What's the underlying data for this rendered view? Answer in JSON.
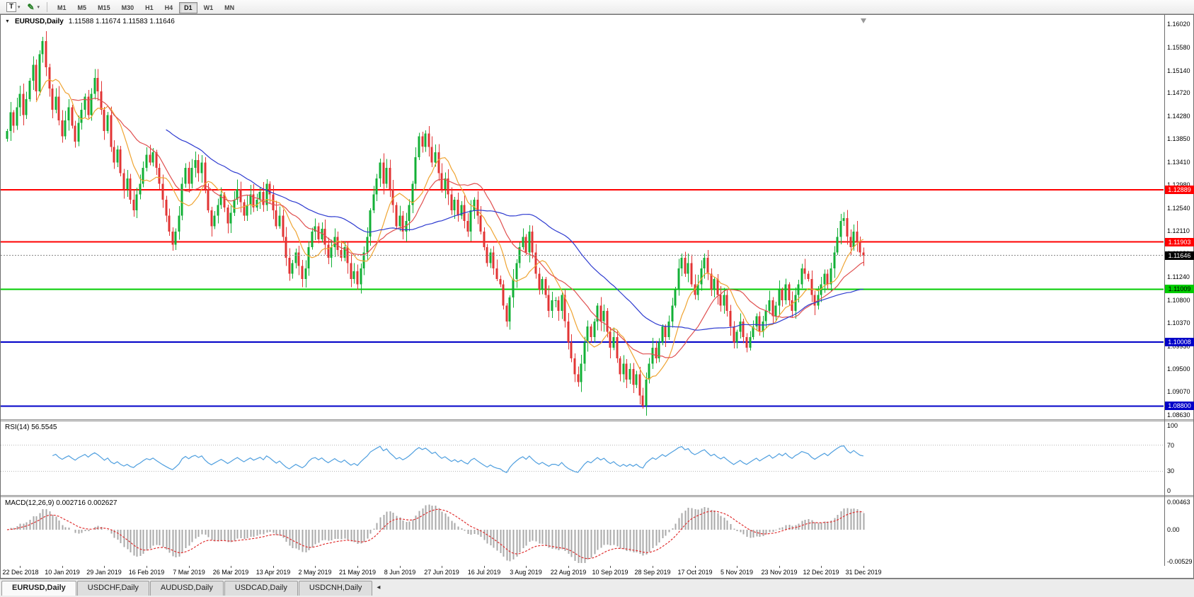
{
  "toolbar": {
    "text_tool_glyph": "T",
    "draw_tool_glyph": "✎",
    "dropdown_glyph": "▾",
    "timeframes": [
      "M1",
      "M5",
      "M15",
      "M30",
      "H1",
      "H4",
      "D1",
      "W1",
      "MN"
    ],
    "active_timeframe": "D1"
  },
  "chart": {
    "collapse_icon": "▼",
    "title": "EURUSD,Daily",
    "ohlc": "1.11588 1.11674 1.11583 1.11646",
    "price_axis_labels": [
      "1.16020",
      "1.15580",
      "1.15140",
      "1.14720",
      "1.14280",
      "1.13850",
      "1.13410",
      "1.12980",
      "1.12540",
      "1.12110",
      "1.11680",
      "1.11240",
      "1.10800",
      "1.10370",
      "1.09930",
      "1.09500",
      "1.09070",
      "1.08630"
    ],
    "hlines": [
      {
        "price": 1.12889,
        "label": "1.12889",
        "color": "#FF0000",
        "text_color": "#FFFFFF"
      },
      {
        "price": 1.11903,
        "label": "1.11903",
        "color": "#FF0000",
        "text_color": "#FFFFFF"
      },
      {
        "price": 1.11009,
        "label": "1.11009",
        "color": "#00CC00",
        "text_color": "#000000"
      },
      {
        "price": 1.10008,
        "label": "1.10008",
        "color": "#0000C8",
        "text_color": "#FFFFFF"
      },
      {
        "price": 1.088,
        "label": "1.08800",
        "color": "#0000C8",
        "text_color": "#FFFFFF"
      }
    ],
    "current_price": {
      "value": 1.11646,
      "label": "1.11646",
      "box_color": "#000000",
      "text_color": "#FFFFFF"
    }
  },
  "rsi": {
    "label": "RSI(14) 56.5545",
    "period": 14,
    "value": "56.5545",
    "color": "#4F9FDF",
    "levels": [
      70,
      30
    ],
    "axis_labels": [
      "100",
      "70",
      "30",
      "0"
    ]
  },
  "macd": {
    "label": "MACD(12,26,9) 0.002716 0.002627",
    "fast": 12,
    "slow": 26,
    "signal": 9,
    "values": "0.002716 0.002627",
    "histogram_color": "#A9A9A9",
    "signal_color": "#E03030",
    "axis_labels": [
      "0.00463",
      "0.00",
      "-0.00529"
    ]
  },
  "tabs": [
    {
      "label": "EURUSD,Daily",
      "active": true
    },
    {
      "label": "USDCHF,Daily",
      "active": false
    },
    {
      "label": "AUDUSD,Daily",
      "active": false
    },
    {
      "label": "USDCAD,Daily",
      "active": false
    },
    {
      "label": "USDCNH,Daily",
      "active": false
    }
  ],
  "tab_scroll_glyph": "◂",
  "chart_data": {
    "type": "candlestick",
    "symbol": "EURUSD",
    "timeframe": "Daily",
    "ylim": [
      1.0855,
      1.162
    ],
    "candle_up_color": "#12B036",
    "candle_down_color": "#E23434",
    "moving_averages": [
      {
        "period": 10,
        "color": "#EFA432"
      },
      {
        "period": 21,
        "color": "#E05050"
      },
      {
        "period": 50,
        "color": "#2E3BD0"
      }
    ],
    "x_labels": [
      "22 Dec 2018",
      "10 Jan 2019",
      "29 Jan 2019",
      "16 Feb 2019",
      "7 Mar 2019",
      "26 Mar 2019",
      "13 Apr 2019",
      "2 May 2019",
      "21 May 2019",
      "8 Jun 2019",
      "27 Jun 2019",
      "16 Jul 2019",
      "3 Aug 2019",
      "22 Aug 2019",
      "10 Sep 2019",
      "28 Sep 2019",
      "17 Oct 2019",
      "5 Nov 2019",
      "23 Nov 2019",
      "12 Dec 2019",
      "31 Dec 2019"
    ],
    "x_label_indices": [
      4,
      17,
      30,
      43,
      56,
      69,
      82,
      95,
      108,
      121,
      134,
      147,
      160,
      173,
      186,
      199,
      212,
      225,
      238,
      251,
      264
    ],
    "closes": [
      1.14,
      1.1435,
      1.141,
      1.1445,
      1.147,
      1.143,
      1.146,
      1.1495,
      1.1525,
      1.1475,
      1.1545,
      1.157,
      1.152,
      1.148,
      1.144,
      1.1465,
      1.142,
      1.139,
      1.142,
      1.1445,
      1.141,
      1.138,
      1.1415,
      1.144,
      1.1465,
      1.143,
      1.147,
      1.15,
      1.1475,
      1.144,
      1.14,
      1.143,
      1.137,
      1.134,
      1.1365,
      1.132,
      1.129,
      1.131,
      1.127,
      1.125,
      1.128,
      1.13,
      1.133,
      1.1355,
      1.134,
      1.136,
      1.133,
      1.13,
      1.127,
      1.124,
      1.121,
      1.1185,
      1.121,
      1.124,
      1.13,
      1.133,
      1.13,
      1.133,
      1.1345,
      1.132,
      1.134,
      1.129,
      1.125,
      1.122,
      1.124,
      1.126,
      1.128,
      1.1255,
      1.1225,
      1.1245,
      1.127,
      1.129,
      1.1265,
      1.124,
      1.126,
      1.128,
      1.1255,
      1.127,
      1.1285,
      1.126,
      1.13,
      1.128,
      1.125,
      1.122,
      1.124,
      1.12,
      1.116,
      1.113,
      1.115,
      1.117,
      1.1145,
      1.112,
      1.114,
      1.118,
      1.121,
      1.122,
      1.1195,
      1.1215,
      1.1185,
      1.116,
      1.118,
      1.12,
      1.1175,
      1.116,
      1.118,
      1.115,
      1.112,
      1.1135,
      1.111,
      1.114,
      1.117,
      1.12,
      1.125,
      1.128,
      1.131,
      1.134,
      1.13,
      1.133,
      1.129,
      1.126,
      1.122,
      1.124,
      1.121,
      1.123,
      1.126,
      1.13,
      1.135,
      1.139,
      1.137,
      1.1395,
      1.137,
      1.134,
      1.136,
      1.132,
      1.129,
      1.131,
      1.128,
      1.125,
      1.127,
      1.124,
      1.126,
      1.123,
      1.121,
      1.125,
      1.127,
      1.124,
      1.121,
      1.118,
      1.115,
      1.117,
      1.114,
      1.112,
      1.111,
      1.107,
      1.104,
      1.1085,
      1.112,
      1.115,
      1.118,
      1.12,
      1.117,
      1.121,
      1.117,
      1.113,
      1.11,
      1.112,
      1.109,
      1.106,
      1.108,
      1.108,
      1.106,
      1.109,
      1.104,
      1.1,
      1.097,
      1.094,
      1.0925,
      1.096,
      1.1,
      1.103,
      1.101,
      1.104,
      1.107,
      1.104,
      1.106,
      1.102,
      1.099,
      1.101,
      1.097,
      1.094,
      1.096,
      1.093,
      1.095,
      1.092,
      1.094,
      1.09,
      1.088,
      1.093,
      1.096,
      1.099,
      1.097,
      1.1,
      1.103,
      1.101,
      1.104,
      1.107,
      1.11,
      1.114,
      1.116,
      1.113,
      1.115,
      1.111,
      1.109,
      1.111,
      1.114,
      1.116,
      1.113,
      1.11,
      1.112,
      1.109,
      1.107,
      1.109,
      1.106,
      1.103,
      1.1,
      1.102,
      1.104,
      1.101,
      1.099,
      1.101,
      1.103,
      1.105,
      1.102,
      1.104,
      1.106,
      1.108,
      1.105,
      1.107,
      1.11,
      1.108,
      1.111,
      1.108,
      1.106,
      1.109,
      1.111,
      1.114,
      1.113,
      1.112,
      1.109,
      1.107,
      1.109,
      1.111,
      1.113,
      1.111,
      1.114,
      1.117,
      1.12,
      1.123,
      1.1235,
      1.12,
      1.118,
      1.121,
      1.119,
      1.117,
      1.11646
    ]
  }
}
